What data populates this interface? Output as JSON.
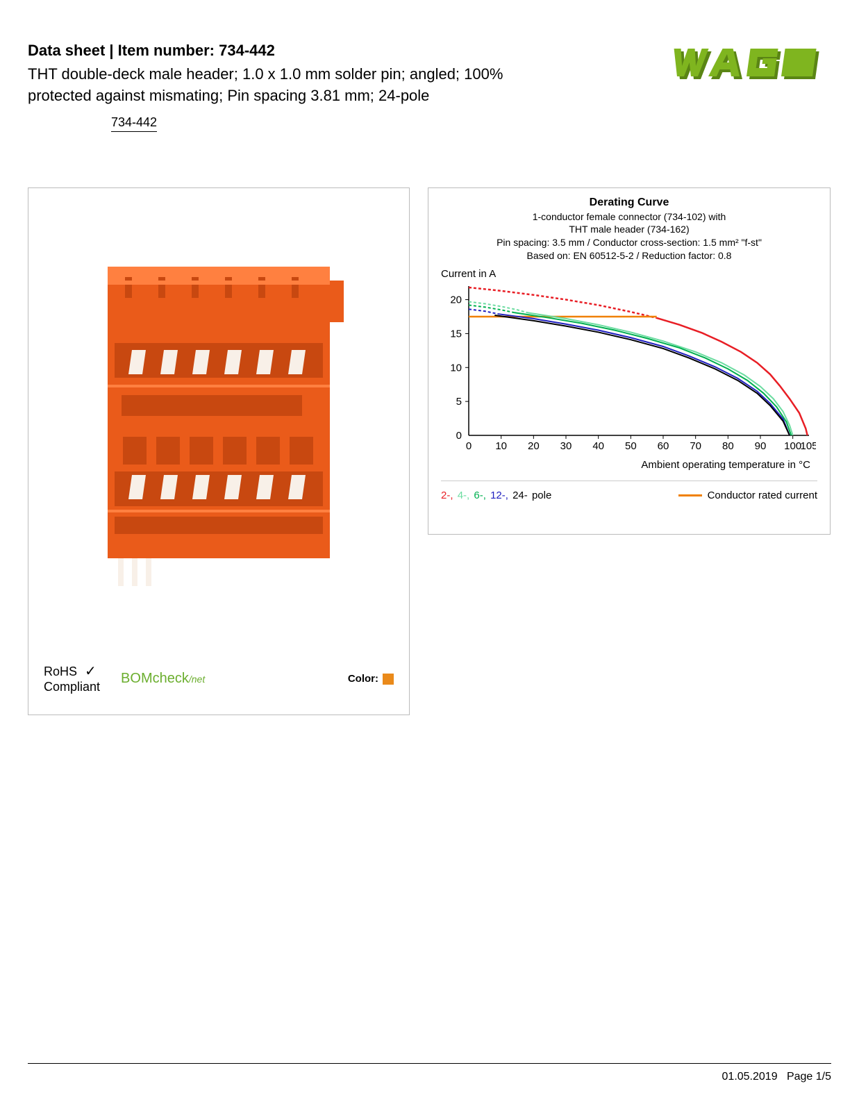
{
  "header": {
    "title": "Data sheet  |  Item number: 734-442",
    "description1": "THT double-deck male header; 1.0 x 1.0 mm solder pin; angled; 100%",
    "description2": "protected against mismating; Pin spacing 3.81 mm; 24-pole",
    "part_link": "734-442"
  },
  "logo": {
    "text": "WAGO",
    "color": "#7FB51F"
  },
  "product_panel": {
    "connector_color": "#EA5B1A",
    "rohs_line1": "RoHS",
    "rohs_line2": "Compliant",
    "check_symbol": "✓",
    "bomcheck_text": "BOMcheck",
    "bomcheck_suffix": "/net",
    "color_label": "Color:",
    "color_swatch": "#EA8A1A"
  },
  "chart": {
    "title": "Derating Curve",
    "sub1": "1-conductor female connector (734-102) with",
    "sub2": "THT male header (734-162)",
    "sub3": "Pin spacing: 3.5 mm / Conductor cross-section: 1.5 mm² \"f-st\"",
    "sub4": "Based on: EN 60512-5-2 / Reduction factor: 0.8",
    "y_axis_title": "Current in A",
    "x_axis_title": "Ambient operating temperature in °C",
    "x_ticks": [
      "0",
      "10",
      "20",
      "30",
      "40",
      "50",
      "60",
      "70",
      "80",
      "90",
      "100",
      "105"
    ],
    "y_ticks": [
      "0",
      "5",
      "10",
      "15",
      "20"
    ],
    "xlim": [
      0,
      105
    ],
    "ylim": [
      0,
      22
    ],
    "axis_color": "#000000",
    "series": [
      {
        "name": "2-pole",
        "color": "#E81E25",
        "dash": "4,3",
        "points": [
          [
            0,
            21.8
          ],
          [
            10,
            21.3
          ],
          [
            20,
            20.7
          ],
          [
            30,
            20.0
          ],
          [
            40,
            19.2
          ],
          [
            50,
            18.2
          ],
          [
            58,
            17.3
          ]
        ]
      },
      {
        "name": "4-pole",
        "color": "#6BDCA0",
        "dash": "4,3",
        "points": [
          [
            0,
            19.7
          ],
          [
            5,
            19.4
          ],
          [
            10,
            19.0
          ],
          [
            15,
            18.5
          ],
          [
            18,
            18.1
          ]
        ]
      },
      {
        "name": "6-pole",
        "color": "#00B050",
        "dash": "4,3",
        "points": [
          [
            0,
            19.2
          ],
          [
            5,
            18.9
          ],
          [
            10,
            18.5
          ],
          [
            14,
            18.1
          ]
        ]
      },
      {
        "name": "12-pole",
        "color": "#2020C0",
        "dash": "4,3",
        "points": [
          [
            0,
            18.6
          ],
          [
            5,
            18.3
          ],
          [
            9,
            17.9
          ]
        ]
      },
      {
        "name": "conductor-rated",
        "color": "#F08000",
        "dash": null,
        "points": [
          [
            0,
            17.5
          ],
          [
            58,
            17.5
          ]
        ]
      },
      {
        "name": "2-pole-solid",
        "color": "#E81E25",
        "dash": null,
        "points": [
          [
            58,
            17.3
          ],
          [
            65,
            16.3
          ],
          [
            72,
            15.1
          ],
          [
            78,
            13.8
          ],
          [
            84,
            12.3
          ],
          [
            89,
            10.7
          ],
          [
            93,
            9.0
          ],
          [
            96,
            7.3
          ],
          [
            99,
            5.4
          ],
          [
            102,
            3.3
          ],
          [
            104,
            1.0
          ],
          [
            104.5,
            0
          ]
        ]
      },
      {
        "name": "4-pole-solid",
        "color": "#6BDCA0",
        "dash": null,
        "points": [
          [
            18,
            18.1
          ],
          [
            30,
            17.2
          ],
          [
            40,
            16.3
          ],
          [
            50,
            15.2
          ],
          [
            60,
            13.9
          ],
          [
            70,
            12.3
          ],
          [
            78,
            10.7
          ],
          [
            85,
            8.9
          ],
          [
            90,
            7.2
          ],
          [
            94,
            5.4
          ],
          [
            97,
            3.5
          ],
          [
            99,
            1.5
          ],
          [
            100,
            0
          ]
        ]
      },
      {
        "name": "6-pole-solid",
        "color": "#00B050",
        "dash": null,
        "points": [
          [
            14,
            18.1
          ],
          [
            25,
            17.3
          ],
          [
            35,
            16.5
          ],
          [
            45,
            15.5
          ],
          [
            55,
            14.3
          ],
          [
            65,
            12.9
          ],
          [
            73,
            11.4
          ],
          [
            80,
            9.8
          ],
          [
            86,
            8.1
          ],
          [
            91,
            6.2
          ],
          [
            95,
            4.2
          ],
          [
            98,
            2.0
          ],
          [
            99.5,
            0
          ]
        ]
      },
      {
        "name": "12-pole-solid",
        "color": "#2020C0",
        "dash": null,
        "points": [
          [
            9,
            17.9
          ],
          [
            20,
            17.2
          ],
          [
            30,
            16.4
          ],
          [
            40,
            15.5
          ],
          [
            50,
            14.4
          ],
          [
            60,
            13.1
          ],
          [
            68,
            11.7
          ],
          [
            76,
            10.1
          ],
          [
            83,
            8.4
          ],
          [
            89,
            6.5
          ],
          [
            93,
            4.7
          ],
          [
            97,
            2.4
          ],
          [
            99,
            0
          ]
        ]
      },
      {
        "name": "24-pole-solid",
        "color": "#000000",
        "dash": null,
        "points": [
          [
            8,
            17.7
          ],
          [
            20,
            16.9
          ],
          [
            30,
            16.1
          ],
          [
            40,
            15.2
          ],
          [
            50,
            14.1
          ],
          [
            60,
            12.8
          ],
          [
            68,
            11.4
          ],
          [
            76,
            9.8
          ],
          [
            83,
            8.1
          ],
          [
            89,
            6.2
          ],
          [
            93,
            4.4
          ],
          [
            97,
            2.1
          ],
          [
            99,
            0
          ]
        ]
      }
    ],
    "legend_poles": [
      {
        "label": "2-,",
        "color": "#E81E25"
      },
      {
        "label": "4-,",
        "color": "#6BDCA0"
      },
      {
        "label": "6-,",
        "color": "#00B050"
      },
      {
        "label": "12-,",
        "color": "#2020C0"
      },
      {
        "label": "24-",
        "color": "#000000"
      },
      {
        "label": " pole",
        "color": "#000000"
      }
    ],
    "legend_conductor": {
      "color": "#F08000",
      "label": "Conductor rated current"
    }
  },
  "footer": {
    "date": "01.05.2019",
    "page": "Page 1/5"
  }
}
